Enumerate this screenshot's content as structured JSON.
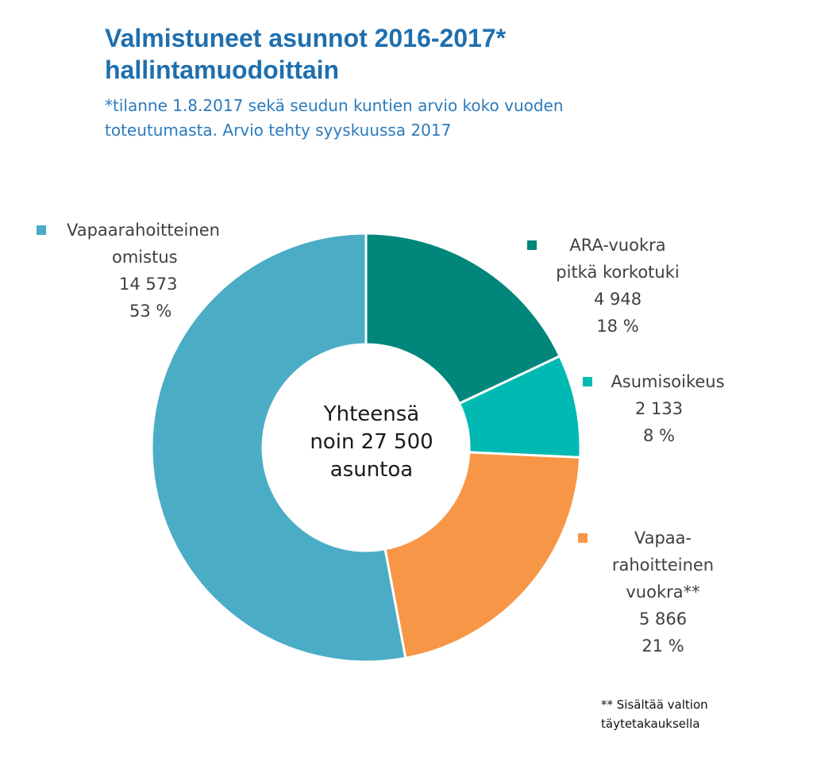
{
  "title_line1": "Valmistuneet asunnot 2016-2017*",
  "title_line2": "hallintamuodoittain",
  "subtitle_line1": "*tilanne 1.8.2017 sekä seudun kuntien arvio koko vuoden",
  "subtitle_line2": "toteutumasta. Arvio tehty syyskuussa 2017",
  "center": [
    "Yhteensä",
    "noin 27 500",
    "asuntoa"
  ],
  "footnote": [
    "** Sisältää valtion",
    "täytetakauksella"
  ],
  "chart_data": {
    "type": "pie",
    "donut": true,
    "start_angle_deg": 0,
    "direction": "clockwise",
    "slices": [
      {
        "label_lines": [
          "ARA-vuokra",
          "pitkä korkotuki"
        ],
        "value": 4948,
        "value_text": "4 948",
        "percent_text": "18 %",
        "color": "#00867b"
      },
      {
        "label_lines": [
          "Asumisoikeus"
        ],
        "value": 2133,
        "value_text": "2 133",
        "percent_text": "8 %",
        "color": "#00b9b3"
      },
      {
        "label_lines": [
          "Vapaa-",
          "rahoitteinen",
          "vuokra**"
        ],
        "value": 5866,
        "value_text": "5 866",
        "percent_text": "21 %",
        "color": "#f79646"
      },
      {
        "label_lines": [
          "Vapaarahoitteinen",
          "omistus"
        ],
        "value": 14573,
        "value_text": "14 573",
        "percent_text": "53 %",
        "color": "#4bacc6"
      }
    ]
  }
}
